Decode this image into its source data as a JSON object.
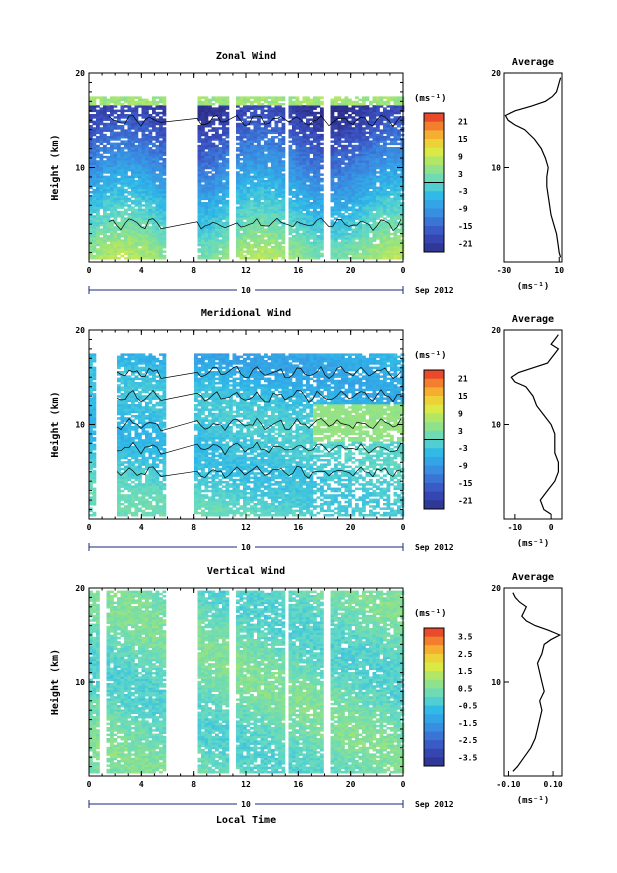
{
  "chart_data": [
    {
      "type": "heatmap",
      "title": "Zonal Wind",
      "ylabel": "Height (km)",
      "xlim": [
        0,
        24
      ],
      "ylim": [
        0,
        20
      ],
      "x_ticks": [
        "0",
        "4",
        "8",
        "12",
        "16",
        "20",
        "0"
      ],
      "y_ticks": [
        "20",
        "10"
      ],
      "date_label": "10",
      "date_right": "Sep 2012",
      "colorbar": {
        "unit": "(ms⁻¹)",
        "range": [
          -24,
          24
        ],
        "tick_labels": [
          "21",
          "15",
          "9",
          "3",
          "-3",
          "-9",
          "-15",
          "-21"
        ],
        "tick_values": [
          21,
          15,
          9,
          3,
          -3,
          -9,
          -15,
          -21
        ],
        "zero_line": 0
      },
      "data_gaps_hours": [
        [
          5.7,
          8.1
        ],
        [
          10.7,
          11.1
        ],
        [
          14.8,
          15.2
        ],
        [
          17.8,
          18.2
        ]
      ],
      "data_top_km": 17.3,
      "profile": {
        "title": "Average",
        "xlabel": "(ms⁻¹)",
        "xlim": [
          -30,
          12
        ],
        "x_ticks": [
          "-30",
          "10"
        ],
        "x_tick_values": [
          -30,
          10
        ],
        "y_ticks": [
          "20",
          "10"
        ],
        "heights": [
          0.5,
          1,
          2,
          3,
          4,
          5,
          6,
          7,
          8,
          9,
          10,
          11,
          12,
          13,
          14,
          14.5,
          15,
          15.5,
          16,
          16.5,
          17,
          17.5,
          18,
          18.5,
          19,
          19.5
        ],
        "values": [
          11,
          10,
          9,
          8,
          6,
          4,
          3,
          2,
          1,
          1,
          2,
          0,
          -3,
          -8,
          -15,
          -22,
          -27,
          -29,
          -22,
          -10,
          0,
          5,
          8,
          9,
          10,
          11
        ]
      }
    },
    {
      "type": "heatmap",
      "title": "Meridional Wind",
      "ylabel": "Height (km)",
      "xlim": [
        0,
        24
      ],
      "ylim": [
        0,
        20
      ],
      "x_ticks": [
        "0",
        "4",
        "8",
        "12",
        "16",
        "20",
        "0"
      ],
      "y_ticks": [
        "20",
        "10"
      ],
      "date_label": "10",
      "date_right": "Sep 2012",
      "colorbar": {
        "unit": "(ms⁻¹)",
        "range": [
          -24,
          24
        ],
        "tick_labels": [
          "21",
          "15",
          "9",
          "3",
          "-3",
          "-9",
          "-15",
          "-21"
        ],
        "tick_values": [
          21,
          15,
          9,
          3,
          -3,
          -9,
          -15,
          -21
        ],
        "zero_line": 0
      },
      "data_gaps_hours": [
        [
          0.5,
          1.9
        ],
        [
          5.7,
          8.0
        ]
      ],
      "data_top_km": 17.5,
      "profile": {
        "title": "Average",
        "xlabel": "(ms⁻¹)",
        "xlim": [
          -13,
          3
        ],
        "x_ticks": [
          "-10",
          "0"
        ],
        "x_tick_values": [
          -10,
          0
        ],
        "y_ticks": [
          "20",
          "10"
        ],
        "heights": [
          0.5,
          1,
          2,
          3,
          4,
          5,
          6,
          7,
          8,
          9,
          10,
          11,
          12,
          13,
          14,
          14.5,
          15,
          15.5,
          16,
          16.5,
          17,
          17.5,
          18,
          18.5,
          19,
          19.5
        ],
        "values": [
          0,
          -2,
          -3,
          -1,
          1,
          2,
          2,
          1,
          1,
          1,
          0,
          -2,
          -4,
          -5,
          -7,
          -10,
          -11,
          -9,
          -5,
          -1,
          0,
          1,
          2,
          0,
          1,
          2
        ]
      }
    },
    {
      "type": "heatmap",
      "title": "Vertical Wind",
      "ylabel": "Height (km)",
      "xlabel": "Local Time",
      "xlim": [
        0,
        24
      ],
      "ylim": [
        0,
        20
      ],
      "x_ticks": [
        "0",
        "4",
        "8",
        "12",
        "16",
        "20",
        "0"
      ],
      "y_ticks": [
        "20",
        "10"
      ],
      "date_label": "10",
      "date_right": "Sep 2012",
      "colorbar": {
        "unit": "(ms⁻¹)",
        "range": [
          -4,
          4
        ],
        "tick_labels": [
          "3.5",
          "2.5",
          "1.5",
          "0.5",
          "-0.5",
          "-1.5",
          "-2.5",
          "-3.5"
        ],
        "tick_values": [
          3.5,
          2.5,
          1.5,
          0.5,
          -0.5,
          -1.5,
          -2.5,
          -3.5
        ]
      },
      "data_gaps_hours": [
        [
          0.7,
          1.2
        ],
        [
          5.7,
          8.1
        ],
        [
          10.7,
          11.1
        ],
        [
          14.8,
          15.2
        ],
        [
          17.8,
          18.2
        ]
      ],
      "data_top_km": 19.5,
      "profile": {
        "title": "Average",
        "xlabel": "(ms⁻¹)",
        "xlim": [
          -0.12,
          0.14
        ],
        "x_ticks": [
          "-0.10",
          "0.10"
        ],
        "x_tick_values": [
          -0.1,
          0.1
        ],
        "y_ticks": [
          "20",
          "10"
        ],
        "heights": [
          0.5,
          1,
          2,
          3,
          4,
          5,
          6,
          7,
          8,
          9,
          10,
          11,
          12,
          13,
          14,
          14.5,
          15,
          15.5,
          16,
          16.5,
          17,
          17.5,
          18,
          18.5,
          19,
          19.5
        ],
        "values": [
          -0.08,
          -0.06,
          -0.03,
          0.0,
          0.02,
          0.03,
          0.04,
          0.05,
          0.04,
          0.06,
          0.05,
          0.04,
          0.03,
          0.05,
          0.06,
          0.09,
          0.13,
          0.08,
          0.02,
          -0.02,
          -0.04,
          -0.03,
          -0.02,
          -0.05,
          -0.07,
          -0.08
        ]
      }
    }
  ]
}
